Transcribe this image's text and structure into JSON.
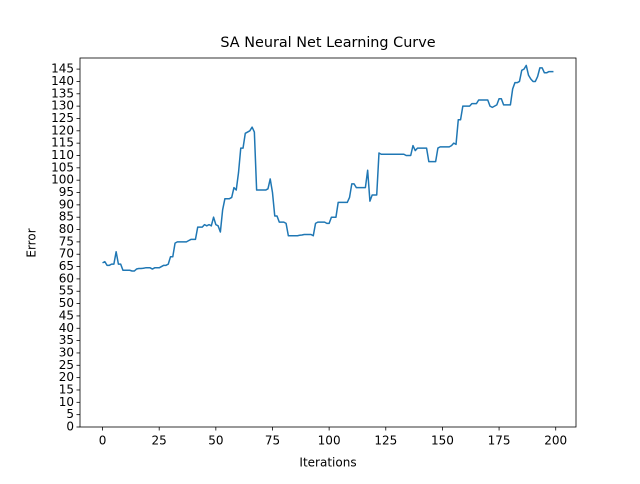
{
  "chart_data": {
    "type": "line",
    "title": "SA Neural Net Learning Curve",
    "xlabel": "Iterations",
    "ylabel": "Error",
    "x": [
      0,
      1,
      2,
      3,
      4,
      5,
      6,
      7,
      8,
      9,
      10,
      11,
      12,
      13,
      14,
      15,
      16,
      17,
      18,
      19,
      20,
      21,
      22,
      23,
      24,
      25,
      26,
      27,
      28,
      29,
      30,
      31,
      32,
      33,
      34,
      35,
      36,
      37,
      38,
      39,
      40,
      41,
      42,
      43,
      44,
      45,
      46,
      47,
      48,
      49,
      50,
      51,
      52,
      53,
      54,
      55,
      56,
      57,
      58,
      59,
      60,
      61,
      62,
      63,
      64,
      65,
      66,
      67,
      68,
      69,
      70,
      71,
      72,
      73,
      74,
      75,
      76,
      77,
      78,
      79,
      80,
      81,
      82,
      83,
      84,
      85,
      86,
      87,
      88,
      89,
      90,
      91,
      92,
      93,
      94,
      95,
      96,
      97,
      98,
      99,
      100,
      101,
      102,
      103,
      104,
      105,
      106,
      107,
      108,
      109,
      110,
      111,
      112,
      113,
      114,
      115,
      116,
      117,
      118,
      119,
      120,
      121,
      122,
      123,
      124,
      125,
      126,
      127,
      128,
      129,
      130,
      131,
      132,
      133,
      134,
      135,
      136,
      137,
      138,
      139,
      140,
      141,
      142,
      143,
      144,
      145,
      146,
      147,
      148,
      149,
      150,
      151,
      152,
      153,
      154,
      155,
      156,
      157,
      158,
      159,
      160,
      161,
      162,
      163,
      164,
      165,
      166,
      167,
      168,
      169,
      170,
      171,
      172,
      173,
      174,
      175,
      176,
      177,
      178,
      179,
      180,
      181,
      182,
      183,
      184,
      185,
      186,
      187,
      188,
      189,
      190,
      191,
      192,
      193,
      194,
      195,
      196,
      197,
      198,
      199
    ],
    "series": [
      {
        "color": "#1f77b4",
        "values": [
          66.5,
          67,
          65.5,
          65.5,
          66,
          66,
          71,
          66,
          66,
          63.5,
          63.5,
          63.5,
          63.5,
          63.2,
          63.2,
          64,
          64.2,
          64.2,
          64.3,
          64.5,
          64.5,
          64.5,
          64,
          64.5,
          64.5,
          64.5,
          65,
          65.5,
          65.5,
          66,
          69,
          69,
          74.5,
          75,
          75,
          75,
          75,
          75,
          75.5,
          76,
          76,
          76,
          81,
          81,
          81,
          82,
          81.5,
          82,
          81.5,
          85,
          82,
          81.5,
          79,
          88,
          92.5,
          92.5,
          92.5,
          93,
          97,
          96,
          103,
          113,
          113,
          119,
          119.5,
          120,
          121.5,
          119.5,
          96,
          96,
          96,
          96,
          96,
          96.5,
          100.5,
          95,
          85.5,
          85.5,
          83,
          83,
          83,
          82.5,
          77.5,
          77.5,
          77.5,
          77.5,
          77.5,
          77.7,
          77.8,
          78,
          78,
          78,
          78,
          77.5,
          82.5,
          83,
          83,
          83,
          83,
          82.5,
          82.5,
          85,
          85,
          85,
          91,
          91,
          91,
          91,
          91,
          93,
          98.5,
          98.5,
          97,
          97,
          97,
          97,
          97,
          104,
          91.5,
          94,
          94,
          94,
          111,
          110.5,
          110.5,
          110.5,
          110.5,
          110.5,
          110.5,
          110.5,
          110.5,
          110.5,
          110.5,
          110.5,
          110,
          110,
          110,
          114,
          112,
          113,
          113,
          113,
          113,
          113,
          107.5,
          107.5,
          107.5,
          107.5,
          113,
          113.5,
          113.5,
          113.5,
          113.5,
          113.5,
          114,
          115,
          114.5,
          124.5,
          124.5,
          130,
          130,
          130,
          130,
          131,
          131,
          131,
          132.5,
          132.5,
          132.5,
          132.5,
          132.5,
          130,
          129.5,
          130,
          130.5,
          133,
          133,
          130.5,
          130.5,
          130.5,
          130.5,
          137,
          139.5,
          139.5,
          140,
          144.5,
          145,
          146.5,
          142.5,
          141,
          140,
          140,
          142,
          145.5,
          145.5,
          143.5,
          143.5,
          144,
          144,
          144
        ]
      }
    ],
    "xlim": [
      -9.95,
      208.95
    ],
    "xticks": [
      0,
      25,
      50,
      75,
      100,
      125,
      150,
      175,
      200
    ],
    "ylim": [
      0,
      149.5
    ],
    "yticks": [
      0,
      5,
      10,
      15,
      20,
      25,
      30,
      35,
      40,
      45,
      50,
      55,
      60,
      65,
      70,
      75,
      80,
      85,
      90,
      95,
      100,
      105,
      110,
      115,
      120,
      125,
      130,
      135,
      140,
      145
    ]
  }
}
